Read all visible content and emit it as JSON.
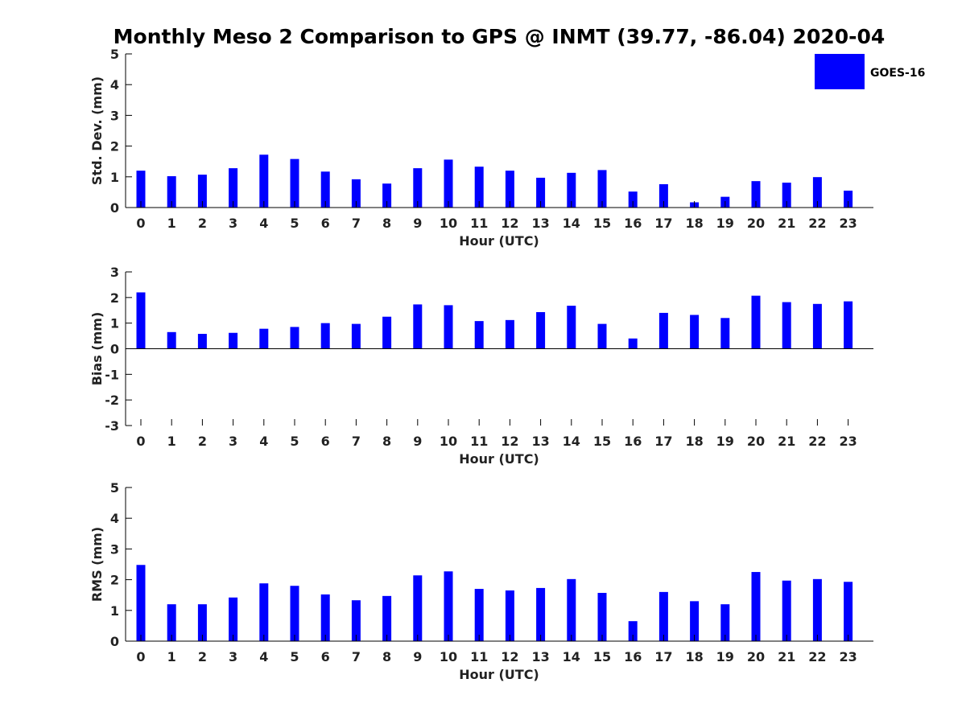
{
  "title": "Monthly Meso 2 Comparison to GPS @ INMT (39.77, -86.04) 2020-04",
  "legend": {
    "label": "GOES-16",
    "color": "#0000ff",
    "placement": "top-right"
  },
  "chart_data": [
    {
      "type": "bar",
      "ylabel": "Std. Dev. (mm)",
      "xlabel": "Hour (UTC)",
      "ylim": [
        0,
        5
      ],
      "yticks": [
        "0",
        "1",
        "2",
        "3",
        "4",
        "5"
      ],
      "categories": [
        "0",
        "1",
        "2",
        "3",
        "4",
        "5",
        "6",
        "7",
        "8",
        "9",
        "10",
        "11",
        "12",
        "13",
        "14",
        "15",
        "16",
        "17",
        "18",
        "19",
        "20",
        "21",
        "22",
        "23"
      ],
      "series": [
        {
          "name": "GOES-16",
          "color": "#0000ff",
          "values": [
            1.2,
            1.02,
            1.07,
            1.28,
            1.72,
            1.58,
            1.17,
            0.92,
            0.78,
            1.28,
            1.56,
            1.33,
            1.2,
            0.97,
            1.13,
            1.22,
            0.52,
            0.76,
            0.17,
            0.35,
            0.86,
            0.81,
            0.99,
            0.55
          ]
        }
      ]
    },
    {
      "type": "bar",
      "ylabel": "Bias (mm)",
      "xlabel": "Hour (UTC)",
      "ylim": [
        -3,
        3
      ],
      "yticks": [
        "-3",
        "-2",
        "-1",
        "0",
        "1",
        "2",
        "3"
      ],
      "categories": [
        "0",
        "1",
        "2",
        "3",
        "4",
        "5",
        "6",
        "7",
        "8",
        "9",
        "10",
        "11",
        "12",
        "13",
        "14",
        "15",
        "16",
        "17",
        "18",
        "19",
        "20",
        "21",
        "22",
        "23"
      ],
      "series": [
        {
          "name": "GOES-16",
          "color": "#0000ff",
          "values": [
            2.2,
            0.65,
            0.58,
            0.62,
            0.78,
            0.85,
            1.0,
            0.97,
            1.25,
            1.73,
            1.7,
            1.08,
            1.12,
            1.43,
            1.68,
            0.97,
            0.4,
            1.4,
            1.32,
            1.2,
            2.07,
            1.82,
            1.75,
            1.85
          ]
        }
      ]
    },
    {
      "type": "bar",
      "ylabel": "RMS (mm)",
      "xlabel": "Hour (UTC)",
      "ylim": [
        0,
        5
      ],
      "yticks": [
        "0",
        "1",
        "2",
        "3",
        "4",
        "5"
      ],
      "categories": [
        "0",
        "1",
        "2",
        "3",
        "4",
        "5",
        "6",
        "7",
        "8",
        "9",
        "10",
        "11",
        "12",
        "13",
        "14",
        "15",
        "16",
        "17",
        "18",
        "19",
        "20",
        "21",
        "22",
        "23"
      ],
      "series": [
        {
          "name": "GOES-16",
          "color": "#0000ff",
          "values": [
            2.48,
            1.2,
            1.2,
            1.42,
            1.88,
            1.8,
            1.52,
            1.33,
            1.47,
            2.14,
            2.27,
            1.7,
            1.65,
            1.73,
            2.02,
            1.57,
            0.65,
            1.6,
            1.3,
            1.2,
            2.25,
            1.97,
            2.02,
            1.93
          ]
        }
      ]
    }
  ]
}
